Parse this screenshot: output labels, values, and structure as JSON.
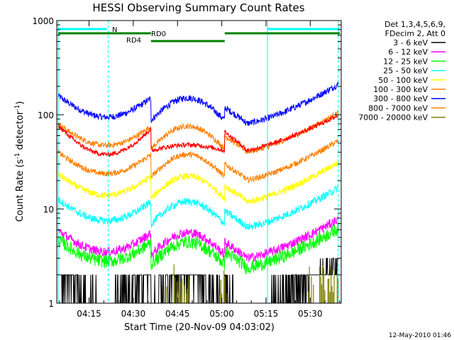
{
  "chart_data": {
    "type": "line",
    "title": "HESSI Observing Summary Count Rates",
    "xlabel": "Start Time (20-Nov-09 04:03:02)",
    "ylabel_main": "Count Rate (s",
    "ylabel_sup1": "-1",
    "ylabel_mid": " detector",
    "ylabel_sup2": "-1",
    "ylabel_end": ")",
    "y_scale": "log",
    "ylim": [
      1,
      1000
    ],
    "xlim_minutes": [
      4.05,
      100.5
    ],
    "x_ticks": [
      {
        "m": 15,
        "label": "04:15"
      },
      {
        "m": 30,
        "label": "04:30"
      },
      {
        "m": 45,
        "label": "04:45"
      },
      {
        "m": 60,
        "label": "05:00"
      },
      {
        "m": 75,
        "label": "05:15"
      },
      {
        "m": 90,
        "label": "05:30"
      }
    ],
    "y_ticks": [
      {
        "v": 1,
        "label": "1"
      },
      {
        "v": 10,
        "label": "10"
      },
      {
        "v": 100,
        "label": "100"
      },
      {
        "v": 1000,
        "label": "1000"
      }
    ],
    "legend_header": [
      "Det 1,3,4,5,6,9,",
      "FDecim 2, Att 0"
    ],
    "series": [
      {
        "name": "3 - 6 keV",
        "color": "#000000"
      },
      {
        "name": "6 - 12 keV",
        "color": "#ff00ff"
      },
      {
        "name": "12 - 25 keV",
        "color": "#00ff00"
      },
      {
        "name": "25 - 50 keV",
        "color": "#00ffff"
      },
      {
        "name": "50 - 100 keV",
        "color": "#ffff00"
      },
      {
        "name": "100 - 300 keV",
        "color": "#ff8000"
      },
      {
        "name": "300 - 800 keV",
        "color": "#0000ff"
      },
      {
        "name": "800 - 7000 keV",
        "color": "#ff8000"
      },
      {
        "name": "7000 - 20000 keV",
        "color": "#808000"
      }
    ],
    "annotations": [
      {
        "text": "N",
        "color": "#00ffff"
      },
      {
        "text": "RD0",
        "color": "#008000"
      },
      {
        "text": "RD4",
        "color": "#008000"
      }
    ],
    "footer_date": "12-May-2010 01:46"
  }
}
